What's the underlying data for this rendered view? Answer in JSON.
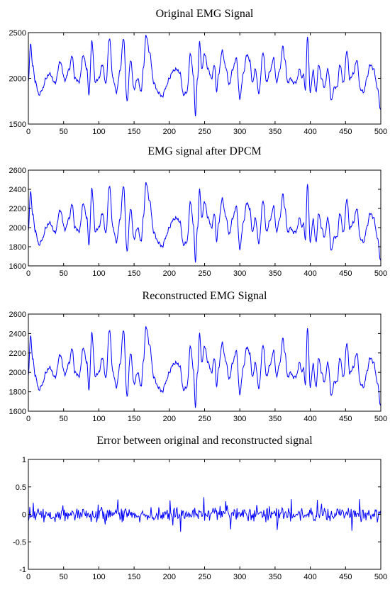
{
  "chart_data": [
    {
      "type": "line",
      "title": "Original EMG Signal",
      "xlabel": "",
      "ylabel": "",
      "xlim": [
        0,
        500
      ],
      "ylim": [
        1500,
        2500
      ],
      "xticks": [
        0,
        50,
        100,
        150,
        200,
        250,
        300,
        350,
        400,
        450,
        500
      ],
      "yticks": [
        1500,
        2000,
        2500
      ],
      "grid": false,
      "color": "#0000ff",
      "series": [
        {
          "keypoints_x": [
            0,
            3,
            6,
            10,
            15,
            20,
            25,
            30,
            38,
            45,
            52,
            58,
            62,
            66,
            72,
            78,
            83,
            86,
            90,
            95,
            100,
            105,
            110,
            115,
            120,
            125,
            130,
            135,
            140,
            145,
            150,
            155,
            160,
            163,
            167,
            172,
            178,
            184,
            190,
            195,
            200,
            205,
            210,
            215,
            220,
            225,
            230,
            234,
            237,
            240,
            243,
            246,
            250,
            255,
            260,
            264,
            267,
            270,
            275,
            280,
            285,
            290,
            295,
            300,
            305,
            310,
            314,
            318,
            322,
            327,
            333,
            338,
            343,
            348,
            352,
            357,
            361,
            364,
            368,
            372,
            376,
            380,
            385,
            388,
            390,
            393,
            396,
            400,
            404,
            408,
            412,
            416,
            420,
            425,
            430,
            434,
            438,
            442,
            447,
            452,
            456,
            461,
            466,
            471,
            476,
            480,
            485,
            490,
            495,
            500
          ],
          "keypoints_y": [
            1960,
            2380,
            2150,
            1960,
            1820,
            1880,
            2000,
            2050,
            1950,
            2180,
            1980,
            2100,
            2250,
            2000,
            1960,
            2250,
            2100,
            1820,
            2400,
            1960,
            2000,
            2150,
            1940,
            2440,
            2000,
            1850,
            2080,
            2440,
            1750,
            2200,
            1880,
            2000,
            1850,
            2100,
            2470,
            2280,
            1950,
            1850,
            1800,
            1900,
            2000,
            2080,
            2100,
            2060,
            1820,
            1850,
            2270,
            2040,
            1600,
            2000,
            2400,
            2100,
            2270,
            2100,
            2000,
            2150,
            1860,
            2050,
            2300,
            2120,
            1930,
            2100,
            2220,
            1780,
            2050,
            2260,
            2200,
            1950,
            2100,
            1840,
            2280,
            1960,
            2080,
            2220,
            1960,
            2100,
            2350,
            2200,
            1950,
            2000,
            1950,
            1960,
            2100,
            2000,
            2050,
            1880,
            2460,
            1850,
            2080,
            1850,
            2150,
            2000,
            1900,
            2100,
            1760,
            1900,
            1900,
            2150,
            1950,
            2300,
            1990,
            2050,
            2200,
            1880,
            1850,
            2000,
            2150,
            2100,
            1900,
            1650
          ]
        }
      ]
    },
    {
      "type": "line",
      "title": "EMG signal after DPCM",
      "xlabel": "",
      "ylabel": "",
      "xlim": [
        0,
        500
      ],
      "ylim": [
        1600,
        2600
      ],
      "xticks": [
        0,
        50,
        100,
        150,
        200,
        250,
        300,
        350,
        400,
        450,
        500
      ],
      "yticks": [
        1600,
        1800,
        2000,
        2200,
        2400,
        2600
      ],
      "grid": false,
      "color": "#0000ff",
      "series": [
        {
          "keypoints_x": [
            0,
            3,
            6,
            10,
            15,
            20,
            25,
            30,
            38,
            45,
            52,
            58,
            62,
            66,
            72,
            78,
            83,
            86,
            90,
            95,
            100,
            105,
            110,
            115,
            120,
            125,
            130,
            135,
            140,
            145,
            150,
            155,
            160,
            163,
            167,
            172,
            178,
            184,
            190,
            195,
            200,
            205,
            210,
            215,
            220,
            225,
            230,
            234,
            237,
            240,
            243,
            246,
            250,
            255,
            260,
            264,
            267,
            270,
            275,
            280,
            285,
            290,
            295,
            300,
            305,
            310,
            314,
            318,
            322,
            327,
            333,
            338,
            343,
            348,
            352,
            357,
            361,
            364,
            368,
            372,
            376,
            380,
            385,
            388,
            390,
            393,
            396,
            400,
            404,
            408,
            412,
            416,
            420,
            425,
            430,
            434,
            438,
            442,
            447,
            452,
            456,
            461,
            466,
            471,
            476,
            480,
            485,
            490,
            495,
            500
          ],
          "keypoints_y": [
            1960,
            2380,
            2150,
            1960,
            1820,
            1880,
            2000,
            2050,
            1950,
            2180,
            1980,
            2100,
            2250,
            2000,
            1960,
            2250,
            2100,
            1820,
            2400,
            1960,
            2000,
            2150,
            1940,
            2440,
            2000,
            1850,
            2080,
            2440,
            1750,
            2200,
            1880,
            2000,
            1850,
            2100,
            2470,
            2280,
            1950,
            1850,
            1800,
            1900,
            2000,
            2080,
            2100,
            2060,
            1820,
            1850,
            2270,
            2040,
            1650,
            2000,
            2400,
            2100,
            2270,
            2100,
            2000,
            2150,
            1860,
            2050,
            2300,
            2120,
            1930,
            2100,
            2220,
            1780,
            2050,
            2260,
            2200,
            1950,
            2100,
            1840,
            2280,
            1960,
            2080,
            2220,
            1960,
            2100,
            2350,
            2200,
            1950,
            2000,
            1950,
            1960,
            2100,
            2000,
            2050,
            1880,
            2460,
            1850,
            2080,
            1850,
            2150,
            2000,
            1900,
            2100,
            1760,
            1900,
            1900,
            2150,
            1950,
            2300,
            1990,
            2050,
            2200,
            1880,
            1850,
            2000,
            2150,
            2100,
            1900,
            1650
          ]
        }
      ]
    },
    {
      "type": "line",
      "title": "Reconstructed EMG Signal",
      "xlabel": "",
      "ylabel": "",
      "xlim": [
        0,
        500
      ],
      "ylim": [
        1600,
        2600
      ],
      "xticks": [
        0,
        50,
        100,
        150,
        200,
        250,
        300,
        350,
        400,
        450,
        500
      ],
      "yticks": [
        1600,
        1800,
        2000,
        2200,
        2400,
        2600
      ],
      "grid": false,
      "color": "#0000ff",
      "series": [
        {
          "keypoints_x": [
            0,
            3,
            6,
            10,
            15,
            20,
            25,
            30,
            38,
            45,
            52,
            58,
            62,
            66,
            72,
            78,
            83,
            86,
            90,
            95,
            100,
            105,
            110,
            115,
            120,
            125,
            130,
            135,
            140,
            145,
            150,
            155,
            160,
            163,
            167,
            172,
            178,
            184,
            190,
            195,
            200,
            205,
            210,
            215,
            220,
            225,
            230,
            234,
            237,
            240,
            243,
            246,
            250,
            255,
            260,
            264,
            267,
            270,
            275,
            280,
            285,
            290,
            295,
            300,
            305,
            310,
            314,
            318,
            322,
            327,
            333,
            338,
            343,
            348,
            352,
            357,
            361,
            364,
            368,
            372,
            376,
            380,
            385,
            388,
            390,
            393,
            396,
            400,
            404,
            408,
            412,
            416,
            420,
            425,
            430,
            434,
            438,
            442,
            447,
            452,
            456,
            461,
            466,
            471,
            476,
            480,
            485,
            490,
            495,
            500
          ],
          "keypoints_y": [
            1960,
            2380,
            2150,
            1960,
            1820,
            1880,
            2000,
            2050,
            1950,
            2180,
            1980,
            2100,
            2250,
            2000,
            1960,
            2250,
            2100,
            1820,
            2400,
            1960,
            2000,
            2150,
            1940,
            2440,
            2000,
            1850,
            2080,
            2440,
            1750,
            2200,
            1880,
            2000,
            1850,
            2100,
            2470,
            2280,
            1950,
            1850,
            1800,
            1900,
            2000,
            2080,
            2100,
            2060,
            1820,
            1850,
            2270,
            2040,
            1650,
            2000,
            2400,
            2100,
            2270,
            2100,
            2000,
            2150,
            1860,
            2050,
            2300,
            2120,
            1930,
            2100,
            2220,
            1780,
            2050,
            2260,
            2200,
            1950,
            2100,
            1840,
            2280,
            1960,
            2080,
            2220,
            1960,
            2100,
            2350,
            2200,
            1950,
            2000,
            1950,
            1960,
            2100,
            2000,
            2050,
            1880,
            2460,
            1850,
            2080,
            1850,
            2150,
            2000,
            1900,
            2100,
            1760,
            1900,
            1900,
            2150,
            1950,
            2300,
            1990,
            2050,
            2200,
            1880,
            1850,
            2000,
            2150,
            2100,
            1900,
            1650
          ]
        }
      ]
    },
    {
      "type": "line",
      "title": "Error between original and reconstructed signal",
      "xlabel": "",
      "ylabel": "",
      "xlim": [
        0,
        500
      ],
      "ylim": [
        -1,
        1
      ],
      "xticks": [
        0,
        50,
        100,
        150,
        200,
        250,
        300,
        350,
        400,
        450,
        500
      ],
      "yticks": [
        -1,
        -0.5,
        0,
        0.5,
        1
      ],
      "grid": false,
      "color": "#0000ff",
      "series": [
        {
          "noise": true,
          "range": [
            -0.33,
            0.33
          ],
          "typical_amplitude": 0.12
        }
      ]
    }
  ]
}
